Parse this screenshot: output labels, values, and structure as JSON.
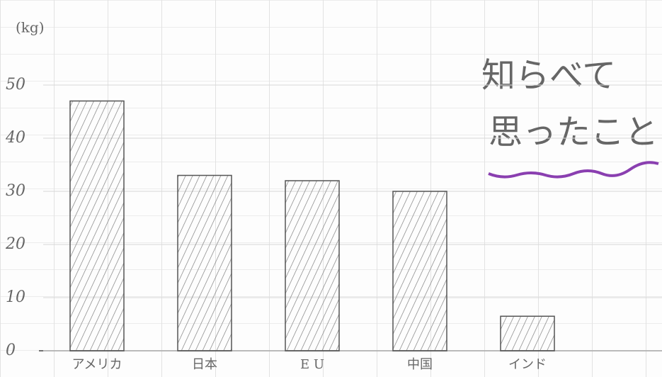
{
  "chart_data": {
    "type": "bar",
    "unit_label": "(kg)",
    "annotation": [
      "知らべて",
      "思ったこと"
    ],
    "categories": [
      "アメリカ",
      "日本",
      "E U",
      "中国",
      "インド"
    ],
    "values": [
      47,
      33,
      32,
      30,
      6.5
    ],
    "color": "#555555",
    "ylim": [
      0,
      60
    ],
    "yticks": [
      0,
      10,
      20,
      30,
      40,
      50
    ],
    "grid": true
  }
}
